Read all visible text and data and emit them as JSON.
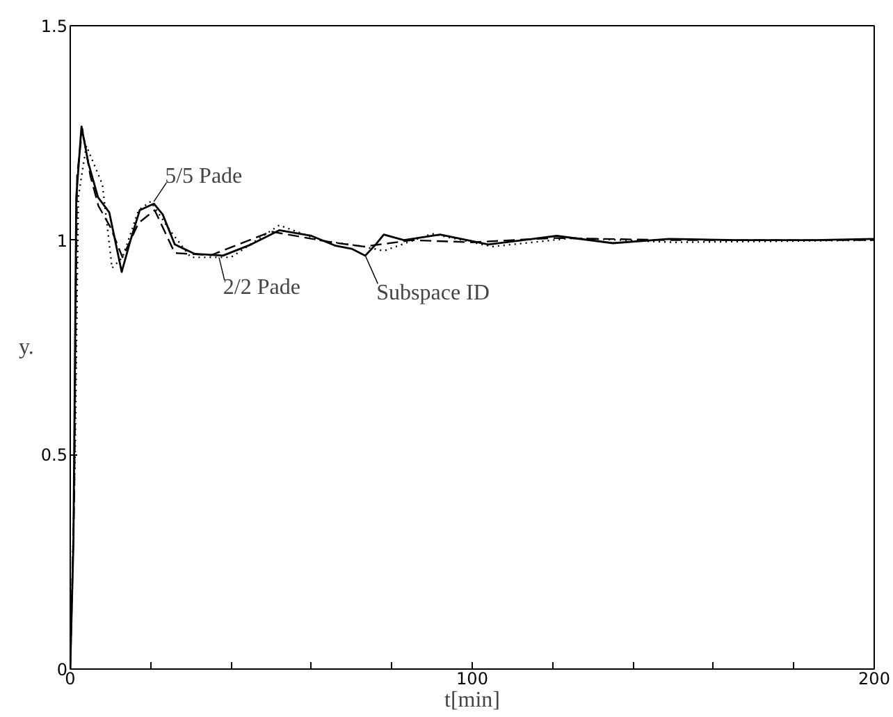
{
  "chart_data": {
    "type": "line",
    "xlabel": "t[min]",
    "ylabel": "y.",
    "xlim": [
      0,
      200
    ],
    "ylim": [
      0,
      1.5
    ],
    "xticks": [
      0,
      {
        "value": 20,
        "label": null
      },
      {
        "value": 40,
        "label": null
      },
      {
        "value": 60,
        "label": null
      },
      {
        "value": 80,
        "label": null
      },
      100,
      {
        "value": 120,
        "label": null
      },
      {
        "value": 140,
        "label": null
      },
      {
        "value": 160,
        "label": null
      },
      {
        "value": 180,
        "label": null
      },
      200
    ],
    "yticks": [
      0,
      0.5,
      1,
      1.5
    ],
    "grid": false,
    "marker": "none",
    "series": [
      {
        "color": "#000000",
        "line_style": "solid",
        "x": [
          0,
          0.8,
          1.5,
          2.8,
          4.5,
          6.9,
          9.7,
          12.8,
          15,
          17.3,
          20.8,
          23,
          26,
          31,
          38,
          45,
          52,
          60,
          66,
          70,
          73.4,
          76,
          78,
          83,
          92,
          104,
          121,
          135,
          149,
          166,
          185,
          200
        ],
        "values": [
          0,
          0.3,
          1.1,
          1.265,
          1.18,
          1.1,
          1.065,
          0.926,
          1.0,
          1.07,
          1.085,
          1.06,
          0.99,
          0.968,
          0.964,
          0.99,
          1.023,
          1.01,
          0.987,
          0.98,
          0.964,
          0.99,
          1.013,
          1.0,
          1.013,
          0.99,
          1.01,
          0.993,
          1.003,
          1.0,
          1.0,
          1.003
        ]
      },
      {
        "color": "#000000",
        "line_style": "dashed",
        "x": [
          0,
          1,
          1.7,
          3,
          5,
          7,
          10,
          13,
          17,
          21,
          26,
          35,
          50,
          65,
          73,
          85,
          100,
          120,
          150,
          200
        ],
        "values": [
          0,
          0.4,
          1.15,
          1.26,
          1.15,
          1.08,
          1.03,
          0.96,
          1.04,
          1.07,
          0.97,
          0.965,
          1.02,
          0.995,
          0.985,
          1.0,
          0.995,
          1.005,
          1.0,
          1.0
        ]
      },
      {
        "color": "#000000",
        "line_style": "dotted",
        "x": [
          0,
          1.2,
          2,
          4,
          8,
          10.4,
          13,
          17,
          20,
          25,
          30,
          40,
          52,
          62,
          73,
          78,
          90,
          105,
          125,
          150,
          200
        ],
        "values": [
          0,
          0.5,
          1.1,
          1.22,
          1.13,
          0.935,
          0.96,
          1.07,
          1.09,
          1.02,
          0.96,
          0.96,
          1.035,
          1.0,
          0.985,
          0.975,
          1.015,
          0.985,
          1.005,
          0.995,
          1.0
        ]
      }
    ],
    "annotations": [
      {
        "text": "5/5 Pade",
        "x": 20.8,
        "y": 1.09
      },
      {
        "text": "2/2 Pade",
        "x": 37,
        "y": 0.96
      },
      {
        "text": "Subspace ID",
        "x": 73.4,
        "y": 0.964
      }
    ]
  }
}
